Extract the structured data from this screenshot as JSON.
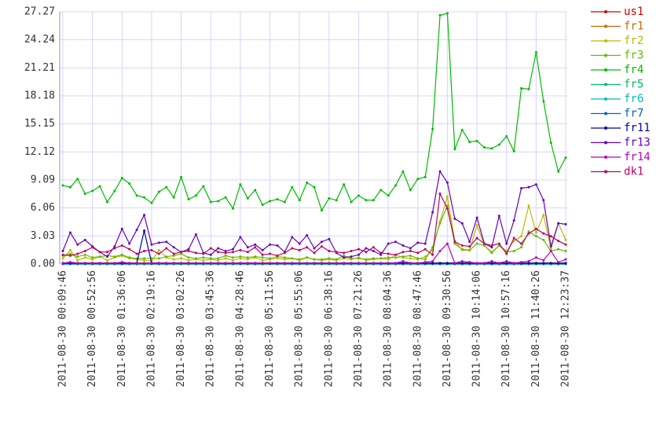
{
  "chart_data": {
    "type": "line",
    "categories": [
      "2011-08-30 00:09:46",
      null,
      null,
      null,
      "2011-08-30 00:52:56",
      null,
      null,
      null,
      "2011-08-30 01:36:06",
      null,
      null,
      null,
      "2011-08-30 02:19:16",
      null,
      null,
      null,
      "2011-08-30 03:02:26",
      null,
      null,
      null,
      "2011-08-30 03:45:36",
      null,
      null,
      null,
      "2011-08-30 04:28:46",
      null,
      null,
      null,
      "2011-08-30 05:11:56",
      null,
      null,
      null,
      "2011-08-30 05:55:06",
      null,
      null,
      null,
      "2011-08-30 06:38:16",
      null,
      null,
      null,
      "2011-08-30 07:21:26",
      null,
      null,
      null,
      "2011-08-30 08:04:36",
      null,
      null,
      null,
      "2011-08-30 08:47:46",
      null,
      null,
      null,
      "2011-08-30 09:30:56",
      null,
      null,
      null,
      "2011-08-30 10:14:06",
      null,
      null,
      null,
      "2011-08-30 10:57:16",
      null,
      null,
      null,
      "2011-08-30 11:40:26",
      null,
      null,
      null,
      "2011-08-30 12:23:37"
    ],
    "ylim": [
      0,
      27.27
    ],
    "yticks": [
      {
        "value": 0,
        "label": "0.00"
      },
      3.03,
      6.06,
      9.09,
      12.12,
      15.15,
      18.18,
      21.21,
      24.24,
      27.27
    ],
    "grid": true,
    "legend": "right",
    "series": [
      {
        "name": "us1",
        "color": "#cc0000",
        "values": [
          0.1,
          0.1,
          0.1,
          0.1,
          0.1,
          0.1,
          0.1,
          0.1,
          0.1,
          0.1,
          0.1,
          0.1,
          0.1,
          0.1,
          0.1,
          0.1,
          0.1,
          0.1,
          0.1,
          0.1,
          0.1,
          0.1,
          0.1,
          0.1,
          0.1,
          0.1,
          0.1,
          0.1,
          0.1,
          0.1,
          0.1,
          0.1,
          0.1,
          0.1,
          0.1,
          0.1,
          0.1,
          0.1,
          0.1,
          0.1,
          0.1,
          0.1,
          0.1,
          0.1,
          0.1,
          0.1,
          0.1,
          0.1,
          0.1,
          0.1,
          0.1,
          0.1,
          0.1,
          0.1,
          0.1,
          0.1,
          0.1,
          0.1,
          0.1,
          0.1,
          0.1,
          0.1,
          0.1,
          0.1,
          0.1,
          0.1,
          0.1,
          0.1,
          0.1
        ]
      },
      {
        "name": "fr1",
        "color": "#cc6600",
        "values": [
          0.1,
          0.1,
          0.1,
          0.1,
          0.1,
          0.1,
          0.1,
          0.1,
          0.1,
          0.1,
          0.1,
          0.1,
          0.1,
          0.1,
          0.1,
          0.1,
          0.1,
          0.1,
          0.1,
          0.1,
          0.1,
          0.1,
          0.1,
          0.1,
          0.1,
          0.1,
          0.1,
          0.1,
          0.1,
          0.1,
          0.1,
          0.1,
          0.1,
          0.1,
          0.1,
          0.1,
          0.1,
          0.1,
          0.1,
          0.1,
          0.1,
          0.1,
          0.1,
          0.1,
          0.1,
          0.1,
          0.1,
          0.1,
          0.1,
          0.1,
          0.1,
          0.1,
          0.1,
          0.1,
          0.1,
          0.1,
          0.1,
          0.1,
          0.1,
          0.1,
          0.1,
          0.1,
          0.1,
          0.1,
          0.1,
          0.1,
          0.1,
          0.1,
          0.1
        ]
      },
      {
        "name": "fr2",
        "color": "#bbbb00",
        "values": [
          0.6,
          1.5,
          0.4,
          0.7,
          0.5,
          0.8,
          0.4,
          0.7,
          0.9,
          0.6,
          0.5,
          0.4,
          0.3,
          1.5,
          0.7,
          0.5,
          0.6,
          0.4,
          0.5,
          0.4,
          0.5,
          0.4,
          0.6,
          0.4,
          0.6,
          0.5,
          0.7,
          0.4,
          0.5,
          0.6,
          0.5,
          0.6,
          0.4,
          0.7,
          0.5,
          0.4,
          0.5,
          0.4,
          0.6,
          0.5,
          0.7,
          0.4,
          0.5,
          0.6,
          0.5,
          1.0,
          0.7,
          0.6,
          0.5,
          0.8,
          1.5,
          4.6,
          7.3,
          2.5,
          1.5,
          1.5,
          4.2,
          2.0,
          1.3,
          2.0,
          1.4,
          2.5,
          3.0,
          6.3,
          3.4,
          5.3,
          1.6,
          4.4,
          2.6
        ]
      },
      {
        "name": "fr3",
        "color": "#66bb00",
        "values": [
          0.9,
          1.1,
          0.8,
          1.0,
          0.7,
          0.8,
          0.9,
          0.8,
          1.0,
          0.7,
          0.6,
          0.6,
          0.6,
          0.6,
          0.8,
          0.9,
          1.1,
          0.7,
          0.6,
          0.7,
          0.6,
          0.6,
          0.9,
          0.7,
          0.8,
          0.7,
          0.8,
          0.7,
          0.6,
          0.8,
          0.7,
          0.6,
          0.5,
          0.7,
          0.5,
          0.5,
          0.6,
          0.5,
          0.9,
          0.6,
          0.6,
          0.5,
          0.6,
          0.6,
          0.7,
          0.7,
          0.8,
          0.9,
          0.6,
          0.5,
          1.8,
          4.4,
          6.3,
          2.2,
          1.6,
          1.5,
          2.2,
          2.0,
          1.2,
          2.0,
          1.3,
          1.4,
          1.8,
          3.5,
          3.0,
          2.6,
          1.4,
          1.6,
          1.4
        ]
      },
      {
        "name": "fr4",
        "color": "#00bb00",
        "values": [
          8.5,
          8.3,
          9.2,
          7.6,
          7.9,
          8.4,
          6.7,
          7.9,
          9.3,
          8.7,
          7.4,
          7.2,
          6.6,
          7.8,
          8.3,
          7.2,
          9.4,
          7.0,
          7.4,
          8.4,
          6.7,
          6.8,
          7.2,
          6.0,
          8.6,
          7.1,
          8.0,
          6.4,
          6.8,
          7.0,
          6.7,
          8.3,
          6.9,
          8.8,
          8.3,
          5.8,
          7.1,
          6.9,
          8.6,
          6.7,
          7.4,
          6.9,
          6.9,
          8.0,
          7.4,
          8.5,
          10.0,
          8.0,
          9.2,
          9.4,
          14.6,
          26.9,
          27.1,
          12.4,
          14.5,
          13.2,
          13.3,
          12.6,
          12.5,
          12.9,
          13.8,
          12.2,
          19.0,
          18.9,
          22.9,
          17.6,
          13.1,
          10.0,
          11.5
        ]
      },
      {
        "name": "fr5",
        "color": "#00bb66",
        "values": [
          0,
          0,
          0,
          0,
          0,
          0,
          0,
          0,
          0,
          0,
          0,
          0,
          0,
          0,
          0,
          0,
          0,
          0,
          0,
          0,
          0,
          0,
          0,
          0,
          0,
          0,
          0,
          0,
          0,
          0,
          0,
          0,
          0,
          0,
          0,
          0,
          0,
          0,
          0,
          0,
          0,
          0,
          0,
          0,
          0,
          0,
          0,
          0,
          0,
          0,
          0,
          0,
          0,
          0,
          0,
          0,
          0,
          0,
          0,
          0,
          0,
          0,
          0,
          0,
          0,
          0,
          0,
          0,
          0
        ]
      },
      {
        "name": "fr6",
        "color": "#00bbbb",
        "values": [
          0,
          0,
          0,
          0,
          0,
          0,
          0,
          0,
          0,
          0,
          0,
          0,
          0,
          0,
          0,
          0,
          0,
          0,
          0,
          0,
          0,
          0,
          0,
          0,
          0,
          0,
          0,
          0,
          0,
          0,
          0,
          0,
          0,
          0,
          0,
          0,
          0,
          0,
          0,
          0,
          0,
          0,
          0,
          0,
          0,
          0,
          0,
          0,
          0,
          0,
          0,
          0,
          0,
          0,
          0,
          0,
          0,
          0,
          0,
          0,
          0,
          0,
          0,
          0,
          0,
          0,
          0,
          0,
          0
        ]
      },
      {
        "name": "fr7",
        "color": "#0066bb",
        "values": [
          0,
          0,
          0,
          0,
          0,
          0,
          0,
          0,
          0,
          0,
          0,
          0,
          0,
          0,
          0,
          0,
          0,
          0,
          0,
          0,
          0,
          0,
          0,
          0,
          0,
          0,
          0,
          0,
          0,
          0,
          0,
          0,
          0,
          0,
          0,
          0,
          0,
          0,
          0,
          0,
          0,
          0,
          0,
          0,
          0,
          0,
          0,
          0,
          0,
          0,
          0,
          0,
          0,
          0,
          0,
          0,
          0,
          0,
          0,
          0,
          0,
          0,
          0,
          0,
          0,
          0,
          0,
          0,
          0
        ]
      },
      {
        "name": "fr11",
        "color": "#0000aa",
        "values": [
          0.1,
          0.1,
          0.1,
          0.1,
          0.1,
          0.1,
          0.1,
          0.1,
          0.1,
          0.1,
          0.1,
          3.6,
          0.1,
          0.1,
          0.1,
          0.1,
          0.1,
          0.1,
          0.1,
          0.1,
          0.1,
          0.1,
          0.1,
          0.1,
          0.1,
          0.1,
          0.1,
          0.1,
          0.1,
          0.1,
          0.1,
          0.1,
          0.1,
          0.1,
          0.1,
          0.1,
          0.1,
          0.1,
          0.1,
          0.1,
          0.1,
          0.1,
          0.1,
          0.1,
          0.1,
          0.1,
          0.1,
          0.1,
          0.1,
          0.1,
          0.1,
          0.1,
          0.1,
          0.1,
          0.1,
          0.1,
          0.1,
          0.1,
          0.1,
          0.1,
          0.1,
          0.1,
          0.1,
          0.1,
          0.1,
          0.1,
          0.1,
          0.1,
          0.1
        ]
      },
      {
        "name": "fr13",
        "color": "#6600bb",
        "values": [
          1.4,
          3.4,
          2.1,
          2.6,
          1.9,
          1.3,
          0.8,
          1.9,
          3.8,
          2.2,
          3.7,
          5.3,
          2.1,
          2.3,
          2.4,
          1.8,
          1.3,
          1.6,
          3.2,
          1.2,
          1.0,
          1.7,
          1.4,
          1.6,
          2.9,
          1.8,
          2.1,
          1.5,
          2.1,
          2.0,
          1.3,
          2.9,
          2.2,
          3.1,
          1.7,
          2.4,
          2.7,
          1.2,
          0.7,
          0.8,
          1.0,
          1.7,
          1.4,
          1.0,
          2.2,
          2.4,
          2.0,
          1.7,
          2.3,
          2.2,
          5.6,
          10.0,
          8.8,
          4.9,
          4.4,
          2.4,
          5.0,
          2.2,
          1.8,
          5.2,
          2.2,
          4.7,
          8.2,
          8.3,
          8.6,
          6.9,
          1.9,
          4.4,
          4.3
        ]
      },
      {
        "name": "fr14",
        "color": "#bb00bb",
        "values": [
          0.1,
          0.2,
          0.1,
          0.1,
          0.1,
          0.1,
          0.1,
          0.1,
          0.2,
          0.1,
          0.1,
          0.1,
          0.1,
          0.1,
          0.1,
          0.1,
          0.1,
          0.1,
          0.1,
          0.1,
          0.1,
          0.1,
          0.1,
          0.1,
          0.1,
          0.1,
          0.1,
          0.1,
          0.1,
          0.1,
          0.1,
          0.1,
          0.1,
          0.1,
          0.1,
          0.1,
          0.1,
          0.1,
          0.1,
          0.1,
          0.1,
          0.1,
          0.1,
          0.1,
          0.1,
          0.1,
          0.3,
          0.1,
          0.1,
          0.2,
          0.3,
          1.4,
          2.2,
          0.1,
          0.3,
          0.2,
          0.1,
          0.1,
          0.3,
          0.1,
          0.3,
          0.1,
          0.2,
          0.3,
          0.7,
          0.4,
          1.4,
          0.2,
          0.5
        ]
      },
      {
        "name": "dk1",
        "color": "#bb0066",
        "values": [
          1.0,
          0.9,
          1.1,
          1.4,
          1.8,
          1.3,
          1.3,
          1.7,
          2.0,
          1.6,
          1.1,
          1.4,
          1.5,
          1.1,
          1.7,
          1.1,
          1.3,
          1.4,
          1.2,
          1.1,
          1.7,
          1.3,
          1.2,
          1.3,
          1.5,
          1.3,
          1.8,
          1.0,
          1.1,
          0.9,
          1.2,
          1.7,
          1.5,
          1.8,
          1.2,
          1.9,
          1.4,
          1.3,
          1.2,
          1.4,
          1.6,
          1.3,
          1.8,
          1.2,
          1.1,
          1.0,
          1.3,
          1.4,
          1.2,
          1.6,
          1.0,
          7.6,
          6.0,
          2.4,
          2.0,
          1.9,
          2.8,
          2.2,
          2.0,
          2.2,
          1.1,
          2.8,
          2.2,
          3.3,
          3.8,
          3.3,
          3.0,
          2.5,
          2.1
        ]
      }
    ]
  }
}
